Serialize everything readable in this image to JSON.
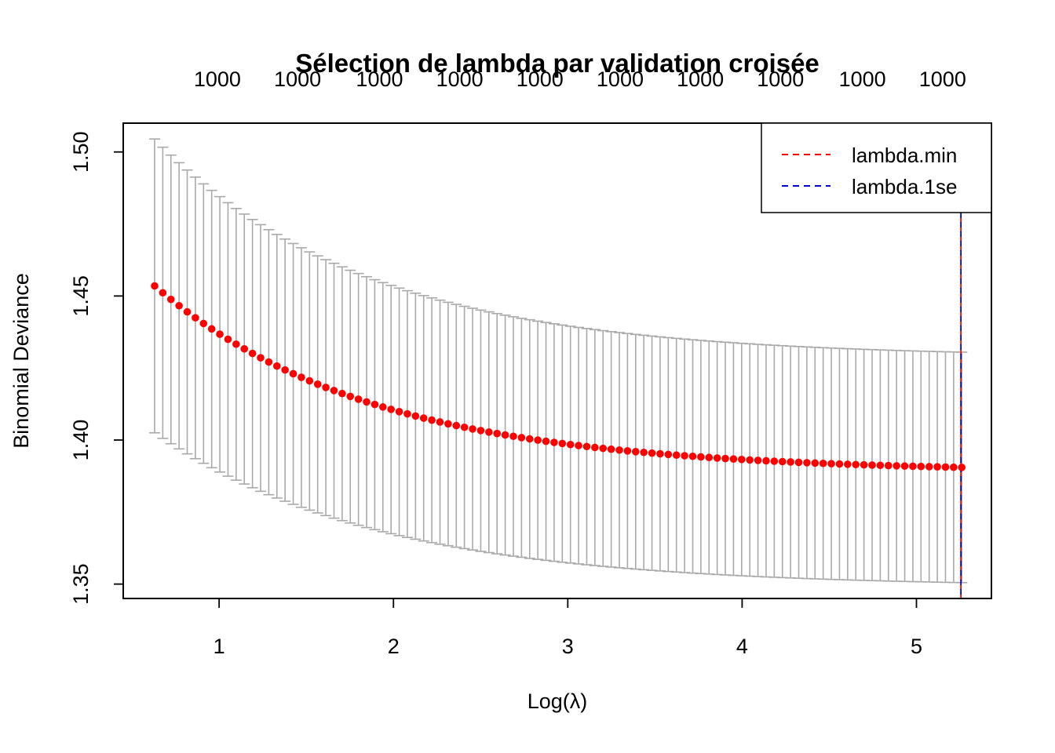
{
  "chart_data": {
    "type": "scatter",
    "title": "Sélection de lambda par validation croisée",
    "xlabel": "Log(λ)",
    "ylabel": "Binomial Deviance",
    "xlim": [
      0.45,
      5.43
    ],
    "ylim": [
      1.345,
      1.51
    ],
    "x_ticks": [
      1,
      2,
      3,
      4,
      5
    ],
    "x_tick_labels": [
      "1",
      "2",
      "3",
      "4",
      "5"
    ],
    "y_ticks": [
      1.35,
      1.4,
      1.45,
      1.5
    ],
    "y_tick_labels": [
      "1.35",
      "1.40",
      "1.45",
      "1.50"
    ],
    "top_axis_ticks": [
      0.99,
      1.45,
      1.92,
      2.38,
      2.84,
      3.3,
      3.76,
      4.22,
      4.69,
      5.15
    ],
    "top_axis_labels": [
      "1000",
      "1000",
      "1000",
      "1000",
      "1000",
      "1000",
      "1000",
      "1000",
      "1000",
      "1000"
    ],
    "cv_curve": {
      "x_start": 0.63,
      "x_end": 5.26,
      "n_points": 100,
      "mean": {
        "start": 1.4535,
        "end": 1.3905,
        "decay": 0.93
      },
      "upper": {
        "start": 1.5045,
        "end": 1.4305,
        "decay": 0.95
      },
      "lower": {
        "start": 1.4025,
        "end": 1.3505,
        "decay": 0.91
      },
      "point_color": "#ff0000",
      "errorbar_color": "#a9a9a9"
    },
    "vlines": [
      {
        "name": "lambda.min",
        "x": 5.255,
        "color": "#ff0000"
      },
      {
        "name": "lambda.1se",
        "x": 5.255,
        "color": "#0000cd"
      }
    ],
    "legend": {
      "position": "top-right",
      "entries": [
        {
          "label": "lambda.min",
          "color": "#ff0000",
          "style": "dashed"
        },
        {
          "label": "lambda.1se",
          "color": "#0000cd",
          "style": "dashed"
        }
      ]
    },
    "grid": false
  }
}
